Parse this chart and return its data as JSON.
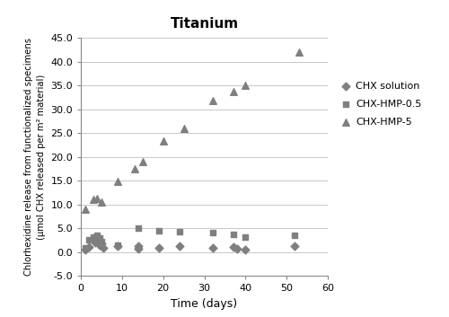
{
  "title": "Titanium",
  "xlabel": "Time (days)",
  "ylabel": "Chlorhexidine release from functionalized specimens\n(μmol CHX released per m² material)",
  "xlim": [
    0,
    60
  ],
  "ylim": [
    -5.0,
    45.0
  ],
  "yticks": [
    -5.0,
    0.0,
    5.0,
    10.0,
    15.0,
    20.0,
    25.0,
    30.0,
    35.0,
    40.0,
    45.0
  ],
  "ytick_labels": [
    "-5.0",
    "0.0",
    "5.0",
    "10.0",
    "15.0",
    "20.0",
    "25.0",
    "30.0",
    "35.0",
    "40.0",
    "45.0"
  ],
  "xticks": [
    0,
    10,
    20,
    30,
    40,
    50,
    60
  ],
  "color": "#7f7f7f",
  "chx_solution": {
    "x": [
      1,
      2,
      3,
      3.5,
      4,
      4.5,
      5,
      5.5,
      9,
      14,
      14,
      19,
      24,
      32,
      37,
      38,
      40,
      52
    ],
    "y": [
      0.5,
      1.0,
      2.5,
      2.0,
      2.8,
      1.5,
      1.8,
      0.8,
      1.2,
      1.2,
      0.7,
      0.8,
      1.2,
      0.8,
      1.0,
      0.7,
      0.5,
      1.2
    ]
  },
  "chx_hmp_05": {
    "x": [
      1,
      2,
      3,
      4,
      4.5,
      5,
      9,
      14,
      19,
      24,
      32,
      37,
      40,
      52
    ],
    "y": [
      0.8,
      2.5,
      3.2,
      3.5,
      3.0,
      2.2,
      1.5,
      5.0,
      4.5,
      4.2,
      4.0,
      3.8,
      3.2,
      3.5
    ]
  },
  "chx_hmp_5": {
    "x": [
      1,
      3,
      4,
      5,
      9,
      13,
      15,
      20,
      25,
      32,
      37,
      40,
      53
    ],
    "y": [
      9.0,
      11.0,
      11.2,
      10.5,
      14.8,
      17.5,
      19.0,
      23.3,
      26.0,
      31.8,
      33.8,
      35.0,
      42.0
    ]
  },
  "legend_labels": [
    "CHX solution",
    "CHX-HMP-0.5",
    "CHX-HMP-5"
  ],
  "background_color": "#ffffff"
}
